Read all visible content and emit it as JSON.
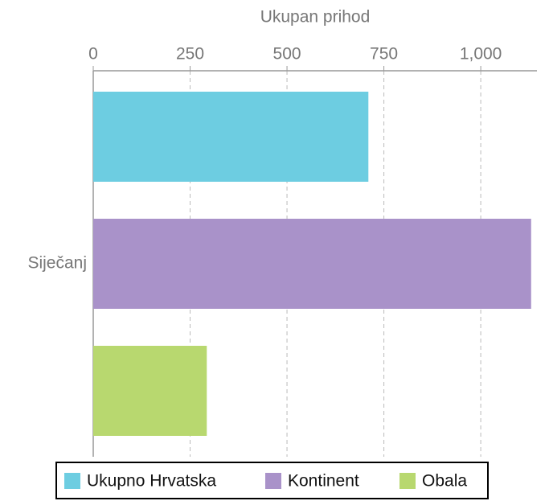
{
  "chart_data": {
    "type": "bar",
    "orientation": "horizontal",
    "x_label": "Ukupan prihod",
    "categories": [
      "Siječanj"
    ],
    "series": [
      {
        "name": "Ukupno Hrvatska",
        "color": "#6dcde1",
        "values": [
          710
        ]
      },
      {
        "name": "Kontinent",
        "color": "#a992c9",
        "values": [
          1130
        ]
      },
      {
        "name": "Obala",
        "color": "#b8d86f",
        "values": [
          293
        ]
      }
    ],
    "xlim": [
      0,
      1145
    ],
    "xticks": [
      0,
      250,
      500,
      750,
      {
        "value": 1000,
        "label": "1,000"
      }
    ],
    "grid": true,
    "legend": "bottom"
  }
}
